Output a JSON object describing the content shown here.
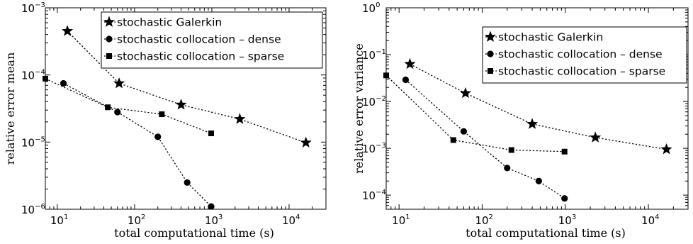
{
  "chart_data": [
    {
      "type": "line",
      "xlabel": "total computational time (s)",
      "ylabel": "relative error mean",
      "xscale": "log",
      "yscale": "log",
      "xlim": [
        7,
        30000
      ],
      "ylim": [
        1e-06,
        0.001
      ],
      "xticks": [
        {
          "base": "10",
          "exp": "1",
          "value": 10
        },
        {
          "base": "10",
          "exp": "2",
          "value": 100
        },
        {
          "base": "10",
          "exp": "3",
          "value": 1000
        },
        {
          "base": "10",
          "exp": "4",
          "value": 10000
        }
      ],
      "yticks": [
        {
          "base": "10",
          "exp": "−6",
          "value": 1e-06
        },
        {
          "base": "10",
          "exp": "−5",
          "value": 1e-05
        },
        {
          "base": "10",
          "exp": "−4",
          "value": 0.0001
        },
        {
          "base": "10",
          "exp": "−3",
          "value": 0.001
        }
      ],
      "legend_position": "top-right",
      "line_style": "dotted",
      "series": [
        {
          "name": "stochastic Galerkin",
          "marker": "star",
          "x": [
            13.5,
            63,
            400,
            2300,
            16500
          ],
          "y": [
            0.00045,
            7.5e-05,
            3.6e-05,
            2.2e-05,
            9.8e-06
          ]
        },
        {
          "name": "stochastic collocation – dense",
          "marker": "circle",
          "x": [
            12,
            60,
            200,
            480,
            980
          ],
          "y": [
            7.5e-05,
            2.8e-05,
            1.2e-05,
            2.5e-06,
            1.1e-06
          ]
        },
        {
          "name": "stochastic collocation – sparse",
          "marker": "square",
          "x": [
            7,
            45,
            225,
            980
          ],
          "y": [
            8.8e-05,
            3.3e-05,
            2.6e-05,
            1.35e-05
          ]
        }
      ]
    },
    {
      "type": "line",
      "xlabel": "total computational time (s)",
      "ylabel": "relative error variance",
      "xscale": "log",
      "yscale": "log",
      "xlim": [
        7,
        30000
      ],
      "ylim": [
        5e-05,
        1
      ],
      "xticks": [
        {
          "base": "10",
          "exp": "1",
          "value": 10
        },
        {
          "base": "10",
          "exp": "2",
          "value": 100
        },
        {
          "base": "10",
          "exp": "3",
          "value": 1000
        },
        {
          "base": "10",
          "exp": "4",
          "value": 10000
        }
      ],
      "yticks": [
        {
          "base": "10",
          "exp": "−4",
          "value": 0.0001
        },
        {
          "base": "10",
          "exp": "−3",
          "value": 0.001
        },
        {
          "base": "10",
          "exp": "−2",
          "value": 0.01
        },
        {
          "base": "10",
          "exp": "−1",
          "value": 0.1
        },
        {
          "base": "10",
          "exp": "0",
          "value": 1
        }
      ],
      "legend_position": "top-right",
      "line_style": "dotted",
      "series": [
        {
          "name": "stochastic Galerkin",
          "marker": "star",
          "x": [
            13.5,
            63,
            400,
            2300,
            16500
          ],
          "y": [
            0.063,
            0.015,
            0.0033,
            0.0017,
            0.00095
          ]
        },
        {
          "name": "stochastic collocation – dense",
          "marker": "circle",
          "x": [
            12,
            60,
            200,
            480,
            980
          ],
          "y": [
            0.029,
            0.0023,
            0.00038,
            0.0002,
            8.5e-05
          ]
        },
        {
          "name": "stochastic collocation – sparse",
          "marker": "square",
          "x": [
            7,
            45,
            225,
            980
          ],
          "y": [
            0.036,
            0.0015,
            0.00092,
            0.00085
          ]
        }
      ]
    }
  ]
}
